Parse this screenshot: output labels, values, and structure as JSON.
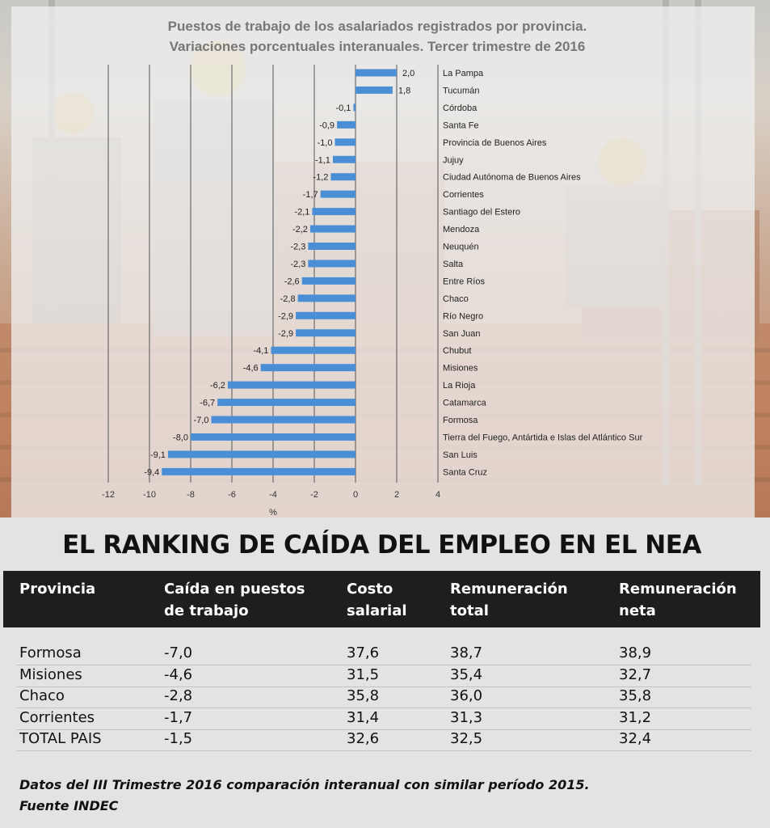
{
  "chart_data": {
    "type": "bar",
    "orientation": "horizontal",
    "title_lines": [
      "Puestos de trabajo de los asalariados registrados por provincia.",
      "Variaciones porcentuales interanuales. Tercer trimestre de 2016"
    ],
    "xlabel": "%",
    "xlim": [
      -12,
      4
    ],
    "xticks": [
      -12,
      -10,
      -8,
      -6,
      -4,
      -2,
      0,
      2,
      4
    ],
    "grid": "vertical",
    "bar_color": "#4a8fd6",
    "categories": [
      "La Pampa",
      "Tucumán",
      "Córdoba",
      "Santa Fe",
      "Provincia de Buenos Aires",
      "Jujuy",
      "Ciudad Autónoma de Buenos Aires",
      "Corrientes",
      "Santiago del Estero",
      "Mendoza",
      "Neuquén",
      "Salta",
      "Entre Ríos",
      "Chaco",
      "Río Negro",
      "San Juan",
      "Chubut",
      "Misiones",
      "La Rioja",
      "Catamarca",
      "Formosa",
      "Tierra del Fuego, Antártida e Islas del Atlántico Sur",
      "San Luis",
      "Santa Cruz"
    ],
    "values": [
      2.0,
      1.8,
      -0.1,
      -0.9,
      -1.0,
      -1.1,
      -1.2,
      -1.7,
      -2.1,
      -2.2,
      -2.3,
      -2.3,
      -2.6,
      -2.8,
      -2.9,
      -2.9,
      -4.1,
      -4.6,
      -6.2,
      -6.7,
      -7.0,
      -8.0,
      -9.1,
      -9.4
    ],
    "value_labels": [
      "2,0",
      "1,8",
      "-0,1",
      "-0,9",
      "-1,0",
      "-1,1",
      "-1,2",
      "-1,7",
      "-2,1",
      "-2,2",
      "-2,3",
      "-2,3",
      "-2,6",
      "-2,8",
      "-2,9",
      "-2,9",
      "-4,1",
      "-4,6",
      "-6,2",
      "-6,7",
      "-7,0",
      "-8,0",
      "-9,1",
      "-9,4"
    ]
  },
  "ranking": {
    "title": "EL RANKING DE CAÍDA DEL EMPLEO EN EL NEA",
    "columns": [
      [
        "Provincia",
        ""
      ],
      [
        "Caída en puestos",
        "de trabajo"
      ],
      [
        "Costo",
        "salarial"
      ],
      [
        "Remuneración",
        "total"
      ],
      [
        "Remuneración",
        "neta"
      ]
    ],
    "rows": [
      [
        "Formosa",
        "-7,0",
        "37,6",
        "38,7",
        "38,9"
      ],
      [
        "Misiones",
        "-4,6",
        "31,5",
        "35,4",
        "32,7"
      ],
      [
        "Chaco",
        "-2,8",
        "35,8",
        "36,0",
        "35,8"
      ],
      [
        "Corrientes",
        "-1,7",
        "31,4",
        "31,3",
        "31,2"
      ],
      [
        "TOTAL PAIS",
        "-1,5",
        "32,6",
        "32,5",
        "32,4"
      ]
    ],
    "footnote_lines": [
      "Datos del III Trimestre 2016 comparación interanual con similar período 2015.",
      "Fuente INDEC"
    ]
  }
}
